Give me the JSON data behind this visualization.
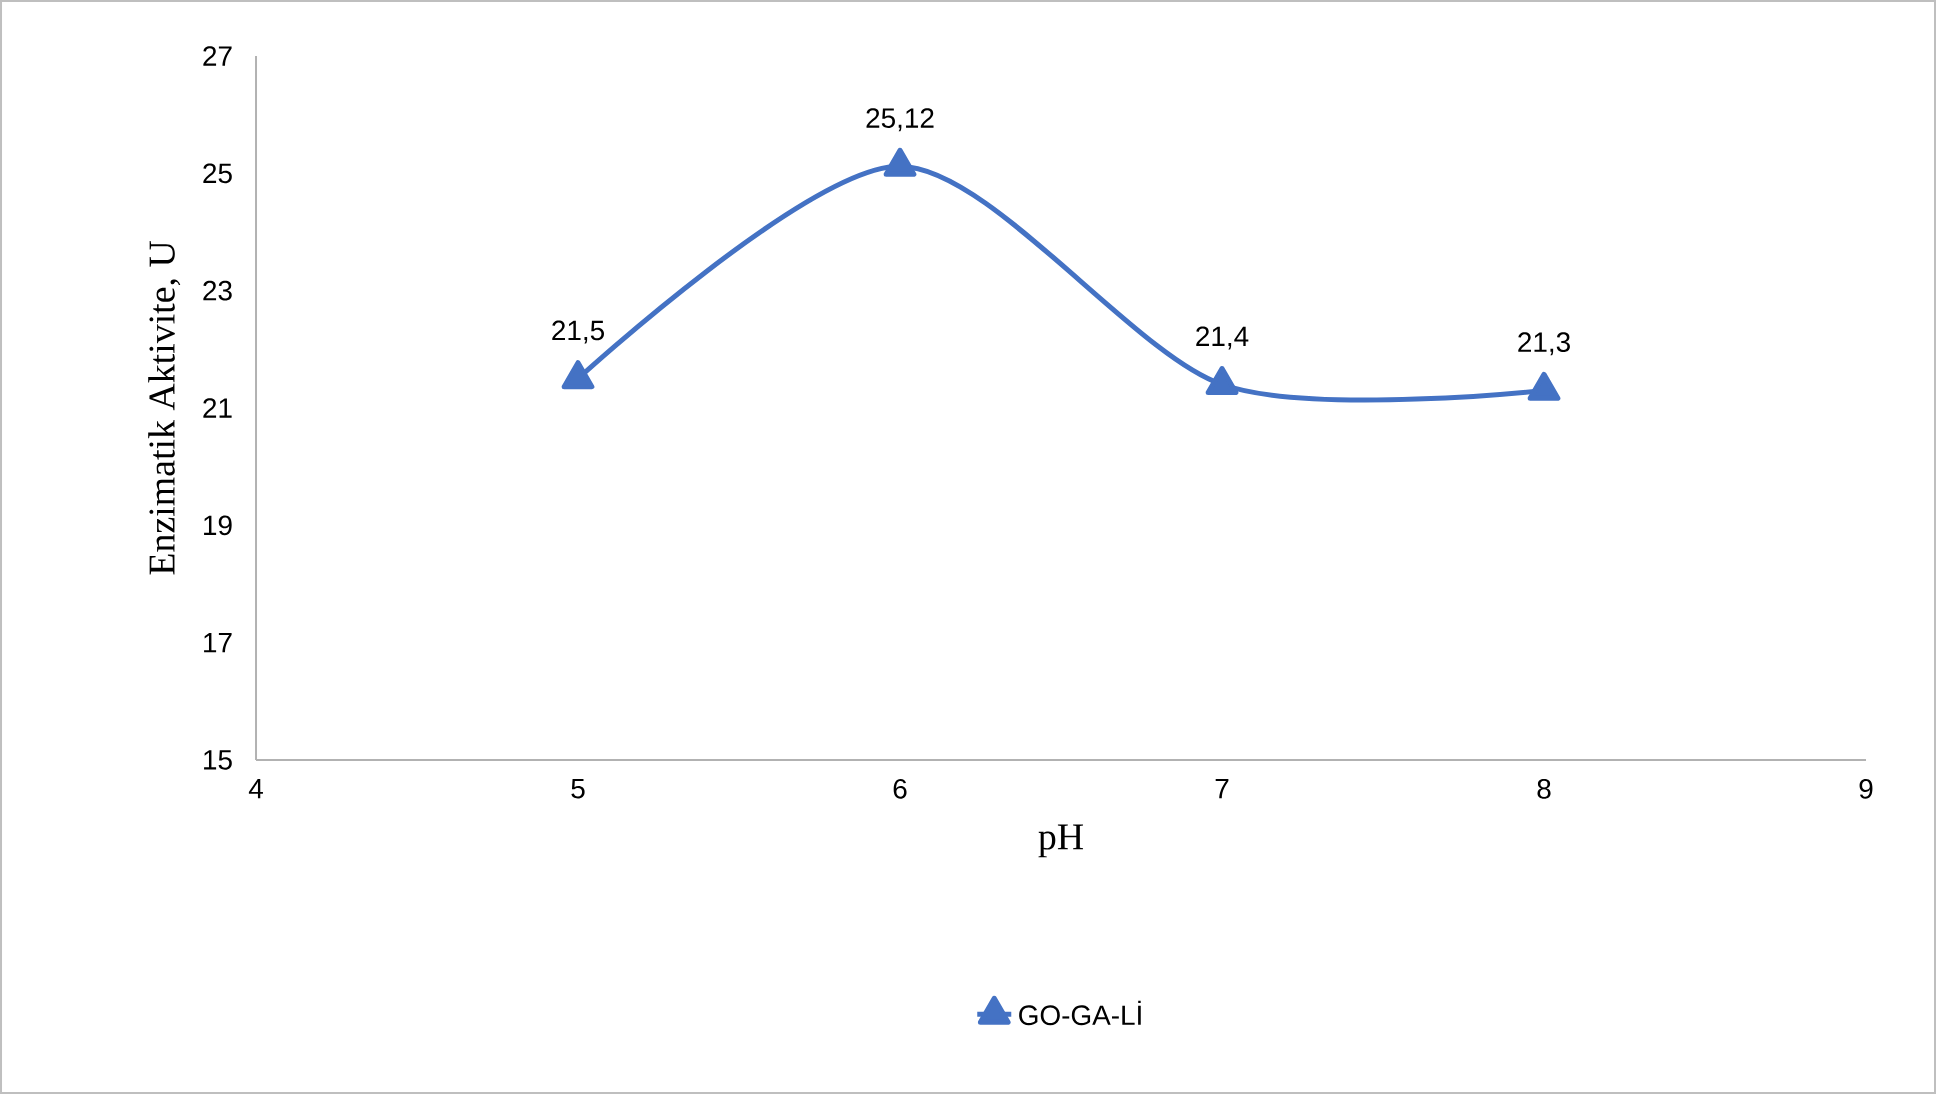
{
  "chart_data": {
    "type": "line",
    "xlabel": "pH",
    "ylabel": "Enzimatik Aktivite, U",
    "x": [
      5,
      6,
      7,
      8
    ],
    "series": [
      {
        "name": "GO-GA-Lİ",
        "color": "#4472c4",
        "values": [
          21.5,
          25.12,
          21.4,
          21.3
        ],
        "value_labels": [
          "21,5",
          "25,12",
          "21,4",
          "21,3"
        ]
      }
    ],
    "xlim": [
      4,
      9
    ],
    "ylim": [
      15,
      27
    ],
    "xticks": [
      4,
      5,
      6,
      7,
      8,
      9
    ],
    "yticks": [
      15,
      17,
      19,
      21,
      23,
      25,
      27
    ],
    "grid": false,
    "legend": "bottom",
    "marker": "triangle",
    "line_style": "solid"
  }
}
